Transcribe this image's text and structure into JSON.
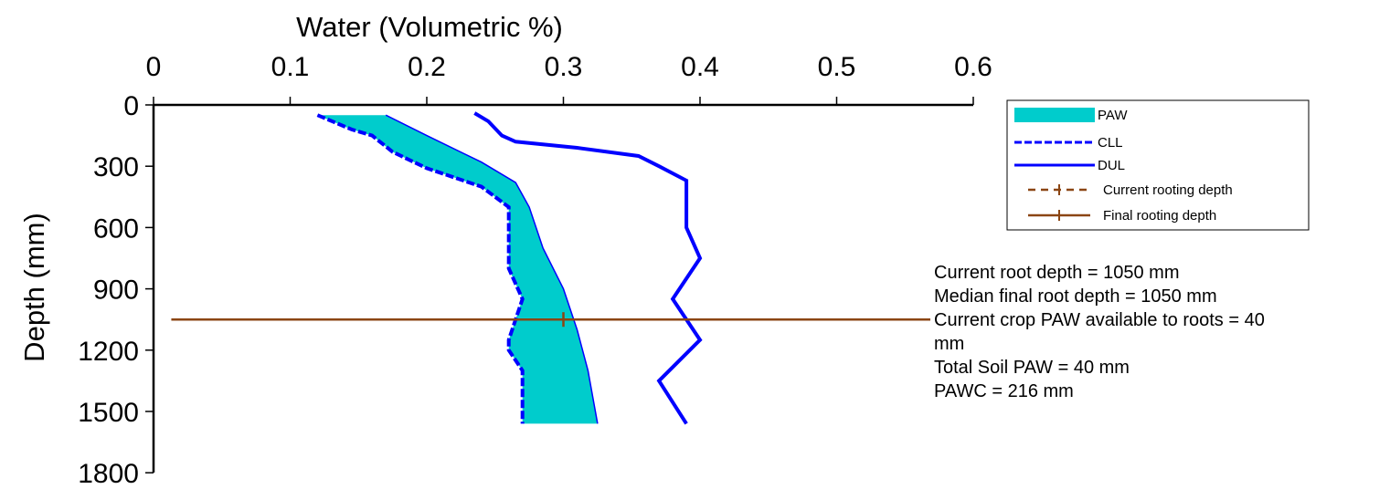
{
  "chart_data": {
    "type": "line",
    "title": "",
    "xlabel": "Water (Volumetric %)",
    "ylabel": "Depth (mm)",
    "xlim": [
      0,
      0.6
    ],
    "ylim": [
      0,
      1800
    ],
    "y_inverted": true,
    "x_axis_position": "top",
    "x_ticks": [
      "0",
      "0.1",
      "0.2",
      "0.3",
      "0.4",
      "0.5",
      "0.6"
    ],
    "y_ticks": [
      "0",
      "300",
      "600",
      "900",
      "1200",
      "1500",
      "1800"
    ],
    "grid": false,
    "legend_position": "top-right",
    "colors": {
      "paw": "#00CCCC",
      "cll": "#0000FF",
      "dul": "#0000FF",
      "root": "#8B4513"
    },
    "series": [
      {
        "name": "CLL",
        "style": "dashed",
        "points": [
          [
            0.12,
            50
          ],
          [
            0.145,
            120
          ],
          [
            0.16,
            150
          ],
          [
            0.175,
            230
          ],
          [
            0.2,
            310
          ],
          [
            0.24,
            400
          ],
          [
            0.26,
            500
          ],
          [
            0.26,
            550
          ],
          [
            0.26,
            800
          ],
          [
            0.27,
            950
          ],
          [
            0.265,
            1050
          ],
          [
            0.26,
            1150
          ],
          [
            0.26,
            1200
          ],
          [
            0.27,
            1300
          ],
          [
            0.27,
            1560
          ]
        ]
      },
      {
        "name": "DUL",
        "style": "solid",
        "points": [
          [
            0.235,
            40
          ],
          [
            0.245,
            80
          ],
          [
            0.255,
            150
          ],
          [
            0.265,
            180
          ],
          [
            0.31,
            210
          ],
          [
            0.355,
            250
          ],
          [
            0.37,
            300
          ],
          [
            0.39,
            370
          ],
          [
            0.39,
            550
          ],
          [
            0.39,
            600
          ],
          [
            0.4,
            750
          ],
          [
            0.38,
            950
          ],
          [
            0.39,
            1050
          ],
          [
            0.4,
            1150
          ],
          [
            0.37,
            1350
          ],
          [
            0.39,
            1560
          ]
        ]
      },
      {
        "name": "PAW",
        "style": "fill",
        "lower": [
          [
            0.12,
            50
          ],
          [
            0.145,
            120
          ],
          [
            0.16,
            150
          ],
          [
            0.175,
            230
          ],
          [
            0.2,
            310
          ],
          [
            0.24,
            400
          ],
          [
            0.26,
            500
          ],
          [
            0.26,
            550
          ],
          [
            0.26,
            800
          ],
          [
            0.27,
            950
          ],
          [
            0.265,
            1050
          ],
          [
            0.26,
            1150
          ],
          [
            0.26,
            1200
          ],
          [
            0.27,
            1300
          ],
          [
            0.27,
            1560
          ]
        ],
        "upper": [
          [
            0.17,
            50
          ],
          [
            0.2,
            150
          ],
          [
            0.24,
            280
          ],
          [
            0.265,
            380
          ],
          [
            0.275,
            500
          ],
          [
            0.285,
            700
          ],
          [
            0.3,
            900
          ],
          [
            0.31,
            1100
          ],
          [
            0.318,
            1300
          ],
          [
            0.325,
            1560
          ]
        ]
      },
      {
        "name": "Current rooting depth",
        "style": "dash-tick",
        "depth": 1050,
        "x": [
          0.013,
          0.6
        ]
      },
      {
        "name": "Final rooting depth",
        "style": "solid-tick",
        "depth": 1050,
        "x": [
          0.013,
          0.6
        ],
        "marker_x": 0.3
      }
    ]
  },
  "summary": {
    "line1": "Current root depth = 1050 mm",
    "line2": "Median final root depth = 1050 mm",
    "line3": "Current crop PAW available to roots = 40",
    "line4": "mm",
    "line5": "Total Soil PAW = 40 mm",
    "line6": "PAWC = 216 mm"
  }
}
